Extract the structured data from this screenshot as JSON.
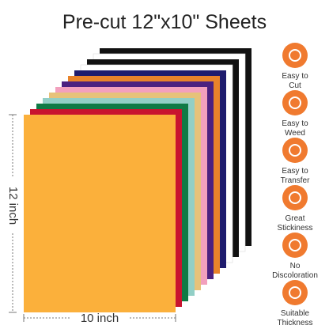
{
  "header": {
    "title": "Pre-cut 12\"x10\" Sheets"
  },
  "dimensions": {
    "height": "12 inch",
    "width": "10 inch"
  },
  "features": [
    {
      "lines": [
        "Easy to",
        "Cut"
      ]
    },
    {
      "lines": [
        "Easy to",
        "Weed"
      ]
    },
    {
      "lines": [
        "Easy to",
        "Transfer"
      ]
    },
    {
      "lines": [
        "Great",
        "Stickiness"
      ]
    },
    {
      "lines": [
        "No",
        "Discoloration"
      ]
    },
    {
      "lines": [
        "Suitable",
        "Thickness"
      ]
    }
  ]
}
